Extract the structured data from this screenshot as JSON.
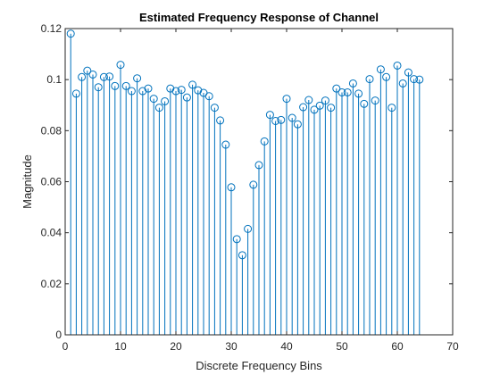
{
  "chart_data": {
    "type": "stem",
    "title": "Estimated Frequency Response of Channel",
    "xlabel": "Discrete Frequency Bins",
    "ylabel": "Magnitude",
    "xlim": [
      0,
      70
    ],
    "ylim": [
      0,
      0.12
    ],
    "xticks": [
      0,
      10,
      20,
      30,
      40,
      50,
      60,
      70
    ],
    "yticks": [
      0,
      0.02,
      0.04,
      0.06,
      0.08,
      0.1,
      0.12
    ],
    "ytick_labels": [
      "0",
      "0.02",
      "0.04",
      "0.06",
      "0.08",
      "0.1",
      "0.12"
    ],
    "grid": false,
    "box": true,
    "series": [
      {
        "color": "#0072BD",
        "marker": "circle-open",
        "x": [
          1,
          2,
          3,
          4,
          5,
          6,
          7,
          8,
          9,
          10,
          11,
          12,
          13,
          14,
          15,
          16,
          17,
          18,
          19,
          20,
          21,
          22,
          23,
          24,
          25,
          26,
          27,
          28,
          29,
          30,
          31,
          32,
          33,
          34,
          35,
          36,
          37,
          38,
          39,
          40,
          41,
          42,
          43,
          44,
          45,
          46,
          47,
          48,
          49,
          50,
          51,
          52,
          53,
          54,
          55,
          56,
          57,
          58,
          59,
          60,
          61,
          62,
          63,
          64
        ],
        "y": [
          0.118,
          0.0945,
          0.101,
          0.1035,
          0.102,
          0.097,
          0.101,
          0.1012,
          0.0975,
          0.1058,
          0.0975,
          0.0955,
          0.1005,
          0.0955,
          0.0965,
          0.0925,
          0.089,
          0.0915,
          0.0965,
          0.0955,
          0.096,
          0.093,
          0.098,
          0.0958,
          0.0948,
          0.0935,
          0.089,
          0.084,
          0.0745,
          0.0578,
          0.0375,
          0.0312,
          0.0415,
          0.0588,
          0.0665,
          0.0758,
          0.0862,
          0.0838,
          0.0842,
          0.0925,
          0.085,
          0.0825,
          0.0892,
          0.092,
          0.0882,
          0.0898,
          0.0918,
          0.089,
          0.0965,
          0.095,
          0.095,
          0.0985,
          0.0945,
          0.0905,
          0.1002,
          0.0918,
          0.104,
          0.101,
          0.089,
          0.1055,
          0.0985,
          0.1028,
          0.1002,
          0.1
        ]
      }
    ]
  }
}
